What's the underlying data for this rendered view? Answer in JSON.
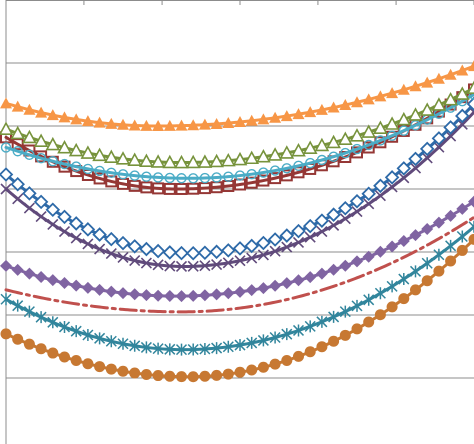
{
  "chart_data": {
    "type": "line",
    "title": "",
    "xlabel": "",
    "ylabel": "",
    "grid": true,
    "x": [
      0,
      0.5,
      1,
      1.5,
      2,
      2.5,
      3,
      3.5,
      4,
      4.5,
      5,
      5.5,
      6,
      6.5,
      7,
      7.5,
      8,
      8.5,
      9,
      9.5,
      10,
      10.5,
      11,
      11.5,
      12,
      12.5,
      13,
      13.5,
      14,
      14.5,
      15,
      15.5,
      16,
      16.5,
      17,
      17.5,
      18,
      18.5,
      19,
      19.5,
      20
    ],
    "xlim": [
      0,
      20
    ],
    "ylim": [
      0,
      7
    ],
    "yticks": [
      1,
      2,
      3,
      4,
      5,
      6
    ],
    "xticks": [
      0,
      3.33,
      6.67,
      10,
      13.33,
      16.67,
      20
    ],
    "series": [
      {
        "color": "#f79646",
        "marker": "triangle",
        "line": "solid",
        "start": 5.36,
        "min": 5.0,
        "end": 5.95,
        "vertex": 6.5
      },
      {
        "color": "#77933c",
        "marker": "triangle-open",
        "line": "solid",
        "start": 4.95,
        "min": 4.42,
        "end": 5.6,
        "vertex": 7.5
      },
      {
        "color": "#4bacc6",
        "marker": "circle-open",
        "line": "solid",
        "start": 4.66,
        "min": 4.17,
        "end": 5.5,
        "vertex": 7.8
      },
      {
        "color": "#953735",
        "marker": "square-open",
        "line": "solid",
        "start": 4.82,
        "min": 4.0,
        "end": 5.58,
        "vertex": 7.3
      },
      {
        "color": "#2e6aa8",
        "marker": "diamond-open",
        "line": "solid",
        "start": 4.23,
        "min": 2.98,
        "end": 5.35,
        "vertex": 7.8
      },
      {
        "color": "#604a7b",
        "marker": "x",
        "line": "solid",
        "start": 4.0,
        "min": 2.77,
        "end": 5.22,
        "vertex": 7.6
      },
      {
        "color": "#8064a2",
        "marker": "diamond",
        "line": "solid",
        "start": 2.78,
        "min": 2.3,
        "end": 3.8,
        "vertex": 7.3
      },
      {
        "color": "#c0504d",
        "marker": "none",
        "line": "dash-dot",
        "start": 2.4,
        "min": 2.05,
        "end": 3.55,
        "vertex": 7.5
      },
      {
        "color": "#31859c",
        "marker": "star",
        "line": "solid",
        "start": 2.25,
        "min": 1.45,
        "end": 3.4,
        "vertex": 7.6
      },
      {
        "color": "#c77832",
        "marker": "circle",
        "line": "solid",
        "start": 1.7,
        "min": 1.02,
        "end": 3.2,
        "vertex": 7.8
      }
    ]
  }
}
